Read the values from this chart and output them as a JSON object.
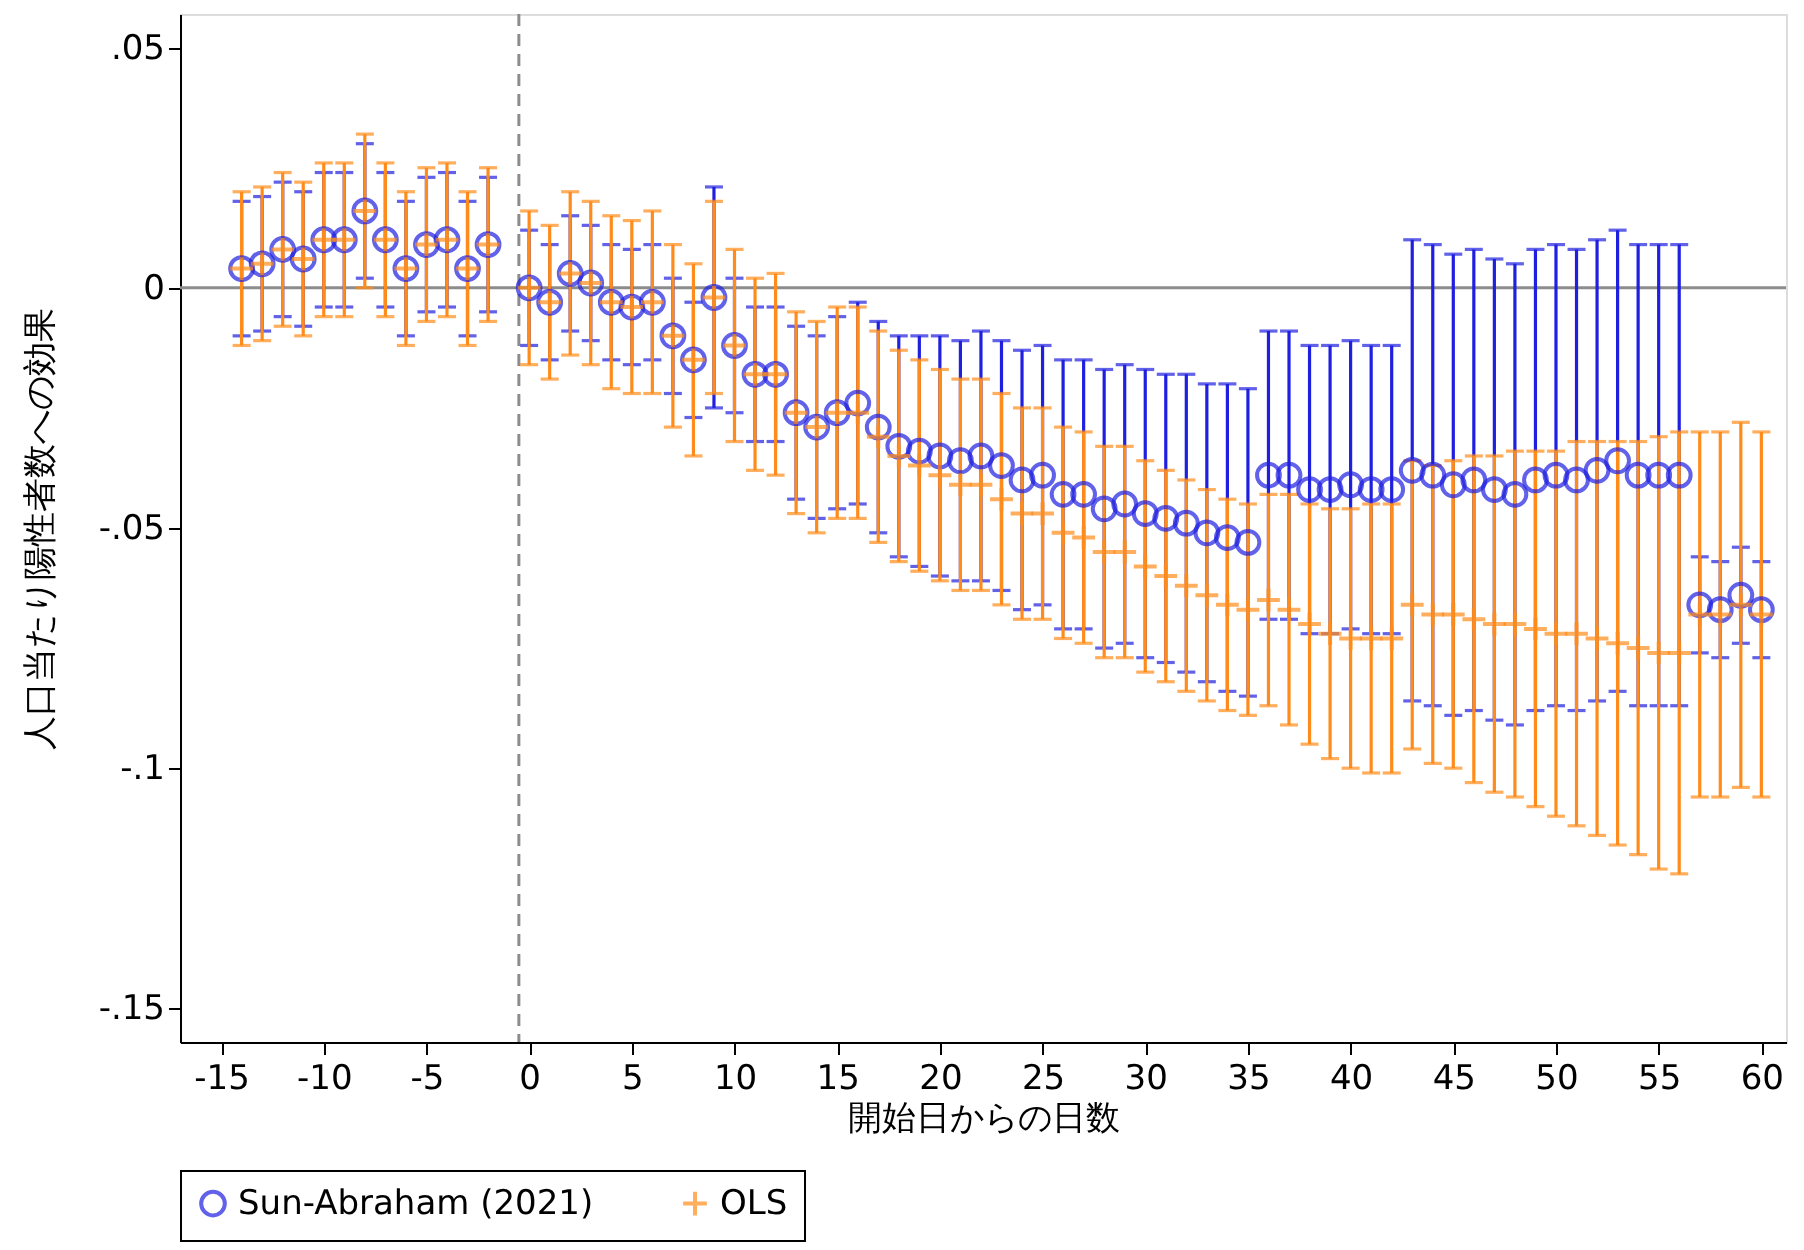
{
  "chart_data": {
    "type": "scatter",
    "xlabel": "開始日からの日数",
    "ylabel": "人口当たり陽性者数への効果",
    "x": [
      -14,
      -13,
      -12,
      -11,
      -10,
      -9,
      -8,
      -7,
      -6,
      -5,
      -4,
      -3,
      -2,
      0,
      1,
      2,
      3,
      4,
      5,
      6,
      7,
      8,
      9,
      10,
      11,
      12,
      13,
      14,
      15,
      16,
      17,
      18,
      19,
      20,
      21,
      22,
      23,
      24,
      25,
      26,
      27,
      28,
      29,
      30,
      31,
      32,
      33,
      34,
      35,
      36,
      37,
      38,
      39,
      40,
      41,
      42,
      43,
      44,
      45,
      46,
      47,
      48,
      49,
      50,
      51,
      52,
      53,
      54,
      55,
      56,
      57,
      58,
      59,
      60
    ],
    "series": [
      {
        "name": "Sun-Abraham (2021)",
        "color": "#1f1fe0",
        "marker": "circle",
        "values": [
          0.004,
          0.005,
          0.008,
          0.006,
          0.01,
          0.01,
          0.016,
          0.01,
          0.004,
          0.009,
          0.01,
          0.004,
          0.009,
          0,
          -0.003,
          0.003,
          0.001,
          -0.003,
          -0.004,
          -0.003,
          -0.01,
          -0.015,
          -0.002,
          -0.012,
          -0.018,
          -0.018,
          -0.026,
          -0.029,
          -0.026,
          -0.024,
          -0.029,
          -0.033,
          -0.034,
          -0.035,
          -0.036,
          -0.035,
          -0.037,
          -0.04,
          -0.039,
          -0.043,
          -0.043,
          -0.046,
          -0.045,
          -0.047,
          -0.048,
          -0.049,
          -0.051,
          -0.052,
          -0.053,
          -0.039,
          -0.039,
          -0.042,
          -0.042,
          -0.041,
          -0.042,
          -0.042,
          -0.038,
          -0.039,
          -0.041,
          -0.04,
          -0.042,
          -0.043,
          -0.04,
          -0.039,
          -0.04,
          -0.038,
          -0.036,
          -0.039,
          -0.039,
          -0.039,
          -0.066,
          -0.067,
          -0.064,
          -0.067
        ],
        "errors": [
          0.014,
          0.014,
          0.014,
          0.014,
          0.014,
          0.014,
          0.014,
          0.014,
          0.014,
          0.014,
          0.014,
          0.014,
          0.014,
          0.012,
          0.012,
          0.012,
          0.012,
          0.012,
          0.012,
          0.012,
          0.012,
          0.012,
          0.023,
          0.014,
          0.014,
          0.014,
          0.018,
          0.019,
          0.02,
          0.021,
          0.022,
          0.023,
          0.024,
          0.025,
          0.025,
          0.026,
          0.026,
          0.027,
          0.027,
          0.028,
          0.028,
          0.029,
          0.029,
          0.03,
          0.03,
          0.031,
          0.031,
          0.032,
          0.032,
          0.03,
          0.03,
          0.03,
          0.03,
          0.03,
          0.03,
          0.03,
          0.048,
          0.048,
          0.048,
          0.048,
          0.048,
          0.048,
          0.048,
          0.048,
          0.048,
          0.048,
          0.048,
          0.048,
          0.048,
          0.048,
          0.01,
          0.01,
          0.01,
          0.01
        ]
      },
      {
        "name": "OLS",
        "color": "#ff8c1a",
        "marker": "cross",
        "values": [
          0.004,
          0.005,
          0.008,
          0.006,
          0.01,
          0.01,
          0.016,
          0.01,
          0.004,
          0.009,
          0.01,
          0.004,
          0.009,
          0,
          -0.003,
          0.003,
          0.001,
          -0.003,
          -0.004,
          -0.003,
          -0.01,
          -0.015,
          -0.002,
          -0.012,
          -0.018,
          -0.018,
          -0.026,
          -0.029,
          -0.026,
          -0.026,
          -0.031,
          -0.035,
          -0.037,
          -0.039,
          -0.041,
          -0.041,
          -0.044,
          -0.047,
          -0.047,
          -0.051,
          -0.052,
          -0.055,
          -0.055,
          -0.058,
          -0.06,
          -0.062,
          -0.064,
          -0.066,
          -0.067,
          -0.065,
          -0.067,
          -0.07,
          -0.072,
          -0.073,
          -0.073,
          -0.073,
          -0.066,
          -0.068,
          -0.068,
          -0.069,
          -0.07,
          -0.07,
          -0.071,
          -0.072,
          -0.072,
          -0.073,
          -0.074,
          -0.075,
          -0.076,
          -0.076,
          -0.068,
          -0.068,
          -0.066,
          -0.068
        ],
        "errors": [
          0.016,
          0.016,
          0.016,
          0.016,
          0.016,
          0.016,
          0.016,
          0.016,
          0.016,
          0.016,
          0.016,
          0.016,
          0.016,
          0.016,
          0.016,
          0.017,
          0.017,
          0.018,
          0.018,
          0.019,
          0.019,
          0.02,
          0.02,
          0.02,
          0.02,
          0.021,
          0.021,
          0.022,
          0.022,
          0.022,
          0.022,
          0.022,
          0.022,
          0.022,
          0.022,
          0.022,
          0.022,
          0.022,
          0.022,
          0.022,
          0.022,
          0.022,
          0.022,
          0.022,
          0.022,
          0.022,
          0.022,
          0.022,
          0.022,
          0.022,
          0.024,
          0.025,
          0.026,
          0.027,
          0.028,
          0.028,
          0.03,
          0.031,
          0.032,
          0.034,
          0.035,
          0.036,
          0.037,
          0.038,
          0.04,
          0.041,
          0.042,
          0.043,
          0.045,
          0.046,
          0.038,
          0.038,
          0.038,
          0.038
        ]
      }
    ],
    "xlim": [
      -17,
      61.2
    ],
    "xticks": [
      -15,
      -10,
      -5,
      0,
      5,
      10,
      15,
      20,
      25,
      30,
      35,
      40,
      45,
      50,
      55,
      60
    ],
    "ylim": [
      -0.157,
      0.057
    ],
    "yticks": [
      {
        "value": 0.05,
        "label": ".05"
      },
      {
        "value": 0,
        "label": "0"
      },
      {
        "value": -0.05,
        "label": "-.05"
      },
      {
        "value": -0.1,
        "label": "-.1"
      },
      {
        "value": -0.15,
        "label": "-.15"
      }
    ],
    "ref_lines": [
      {
        "axis": "y",
        "value": 0,
        "color": "#8c8c8c",
        "line_style": "solid"
      },
      {
        "axis": "x",
        "value": -0.5,
        "color": "#8c8c8c",
        "line_style": "dashed"
      }
    ],
    "legend": "bottom",
    "grid": false
  }
}
